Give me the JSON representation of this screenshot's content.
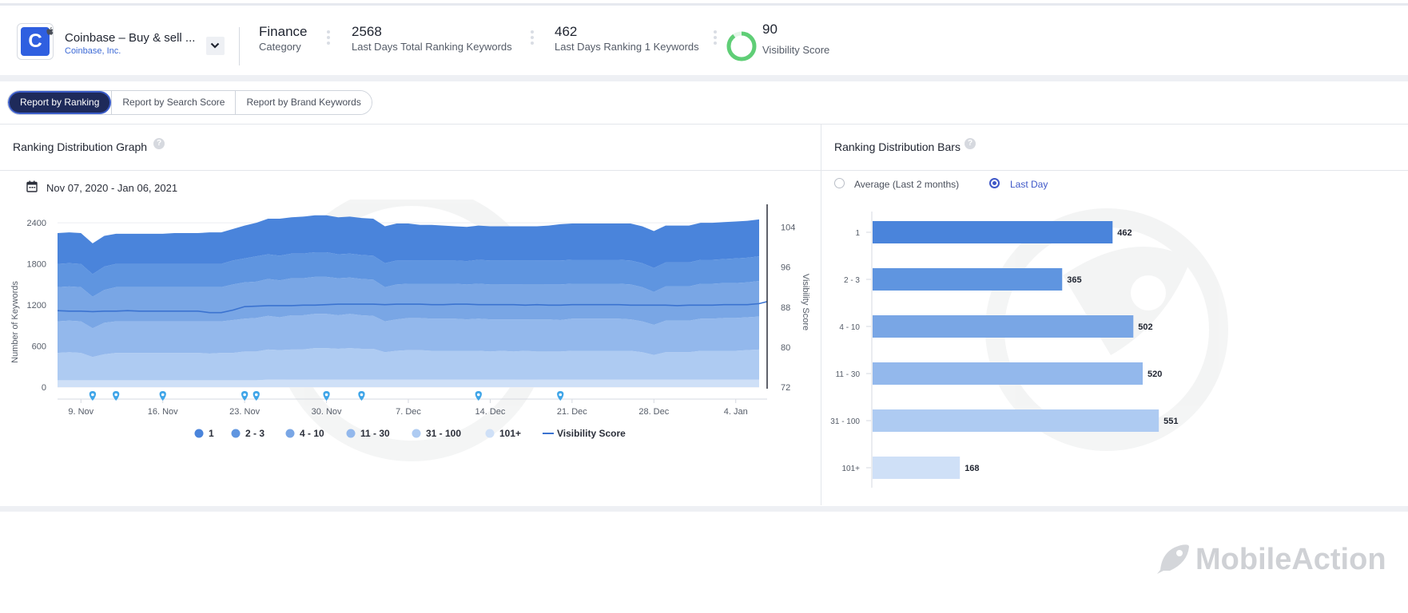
{
  "app": {
    "name": "Coinbase – Buy & sell ...",
    "developer": "Coinbase, Inc.",
    "icon_letter": "C"
  },
  "stats": [
    {
      "value": "Finance",
      "label": "Category"
    },
    {
      "value": "2568",
      "label": "Last Days Total Ranking Keywords"
    },
    {
      "value": "462",
      "label": "Last Days Ranking 1 Keywords"
    },
    {
      "value": "90",
      "label": "Visibility Score"
    }
  ],
  "visibility_ring_fraction": 0.9,
  "tabs": [
    {
      "label": "Report by Ranking",
      "active": true
    },
    {
      "label": "Report by Search Score",
      "active": false
    },
    {
      "label": "Report by Brand Keywords",
      "active": false
    }
  ],
  "left_panel": {
    "title": "Ranking Distribution Graph",
    "date_range": "Nov 07, 2020 - Jan 06, 2021"
  },
  "right_panel": {
    "title": "Ranking Distribution Bars",
    "radio_options": [
      {
        "label": "Average (Last 2 months)",
        "selected": false
      },
      {
        "label": "Last Day",
        "selected": true
      }
    ]
  },
  "colors": {
    "accent": "#3f58c8",
    "tab_active_bg": "#1e2a5a",
    "rank_1": "#4a84db",
    "rank_2_3": "#5f95e0",
    "rank_4_10": "#79a6e5",
    "rank_11_30": "#93b8ec",
    "rank_31_100": "#aecbf2",
    "rank_101_plus": "#cfe0f7",
    "visibility_line": "#3b73d0",
    "ring": "#5fce76"
  },
  "chart_data": [
    {
      "type": "area",
      "stacked": true,
      "ylabel": "Number of Keywords",
      "y2label": "Visibility Score",
      "ylim": [
        0,
        2600
      ],
      "yticks": [
        0,
        600,
        1200,
        1800,
        2400
      ],
      "y2lim": [
        72,
        107.6
      ],
      "y2ticks": [
        72,
        80,
        88,
        96,
        104
      ],
      "x_tick_labels": [
        "9. Nov",
        "16. Nov",
        "23. Nov",
        "30. Nov",
        "7. Dec",
        "14. Dec",
        "21. Dec",
        "28. Dec",
        "4. Jan"
      ],
      "x_tick_day_index": [
        2,
        9,
        16,
        23,
        30,
        37,
        44,
        51,
        58
      ],
      "event_marker_day_index": [
        3,
        5,
        9,
        16,
        17,
        23,
        26,
        36,
        43
      ],
      "day_count": 61,
      "series": [
        {
          "name": "101+",
          "values": [
            100,
            100,
            100,
            100,
            100,
            100,
            100,
            100,
            100,
            100,
            100,
            100,
            100,
            100,
            100,
            100,
            100,
            100,
            110,
            110,
            110,
            110,
            110,
            110,
            110,
            110,
            110,
            110,
            110,
            110,
            110,
            110,
            110,
            110,
            110,
            110,
            110,
            110,
            110,
            110,
            110,
            110,
            110,
            110,
            110,
            110,
            110,
            110,
            110,
            110,
            110,
            110,
            110,
            110,
            110,
            110,
            110,
            110,
            110,
            110,
            110
          ]
        },
        {
          "name": "31 - 100",
          "values": [
            400,
            410,
            400,
            340,
            380,
            400,
            400,
            400,
            400,
            400,
            400,
            400,
            400,
            390,
            400,
            400,
            420,
            420,
            440,
            430,
            440,
            440,
            460,
            460,
            450,
            460,
            450,
            450,
            400,
            420,
            430,
            430,
            420,
            420,
            420,
            420,
            420,
            410,
            420,
            410,
            420,
            410,
            410,
            410,
            420,
            420,
            420,
            420,
            420,
            420,
            400,
            360,
            400,
            400,
            400,
            420,
            420,
            420,
            420,
            430,
            440
          ]
        },
        {
          "name": "11 - 30",
          "values": [
            460,
            460,
            460,
            420,
            460,
            460,
            460,
            460,
            460,
            460,
            460,
            460,
            460,
            470,
            460,
            480,
            480,
            490,
            490,
            480,
            500,
            500,
            500,
            500,
            490,
            500,
            490,
            480,
            450,
            460,
            470,
            470,
            470,
            470,
            470,
            460,
            470,
            470,
            460,
            470,
            460,
            470,
            470,
            460,
            470,
            470,
            470,
            470,
            470,
            460,
            450,
            440,
            460,
            460,
            460,
            470,
            470,
            480,
            480,
            480,
            480
          ]
        },
        {
          "name": "4 - 10",
          "values": [
            500,
            500,
            500,
            460,
            480,
            500,
            500,
            500,
            500,
            500,
            500,
            500,
            500,
            500,
            500,
            520,
            530,
            530,
            540,
            540,
            540,
            540,
            540,
            540,
            540,
            530,
            530,
            530,
            500,
            510,
            500,
            500,
            510,
            510,
            510,
            510,
            510,
            510,
            510,
            510,
            510,
            510,
            510,
            520,
            510,
            510,
            510,
            510,
            510,
            510,
            500,
            480,
            500,
            500,
            500,
            510,
            510,
            510,
            510,
            510,
            520
          ]
        },
        {
          "name": "2 - 3",
          "values": [
            340,
            340,
            340,
            330,
            340,
            340,
            340,
            340,
            340,
            340,
            340,
            340,
            340,
            340,
            340,
            350,
            350,
            370,
            360,
            360,
            360,
            360,
            360,
            360,
            350,
            350,
            350,
            350,
            350,
            350,
            340,
            340,
            340,
            340,
            340,
            340,
            350,
            350,
            350,
            350,
            350,
            350,
            350,
            350,
            350,
            350,
            350,
            350,
            350,
            350,
            350,
            350,
            350,
            350,
            350,
            350,
            350,
            350,
            360,
            360,
            360
          ]
        },
        {
          "name": "1",
          "values": [
            450,
            450,
            450,
            450,
            450,
            440,
            440,
            440,
            440,
            440,
            450,
            450,
            450,
            460,
            460,
            460,
            480,
            490,
            520,
            540,
            530,
            540,
            540,
            540,
            540,
            540,
            540,
            540,
            540,
            540,
            540,
            520,
            520,
            510,
            500,
            500,
            500,
            500,
            500,
            500,
            500,
            500,
            510,
            530,
            530,
            530,
            530,
            530,
            530,
            540,
            540,
            540,
            540,
            540,
            540,
            540,
            540,
            540,
            540,
            540,
            540
          ]
        }
      ],
      "visibility_score": {
        "name": "Visibility Score",
        "values": [
          87.3,
          87.2,
          87.2,
          87.1,
          87.2,
          87.2,
          87.3,
          87.2,
          87.2,
          87.2,
          87.2,
          87.2,
          87.2,
          86.9,
          86.9,
          87.4,
          88.1,
          88.2,
          88.3,
          88.3,
          88.3,
          88.4,
          88.4,
          88.5,
          88.6,
          88.6,
          88.6,
          88.6,
          88.5,
          88.6,
          88.6,
          88.6,
          88.5,
          88.5,
          88.6,
          88.6,
          88.5,
          88.5,
          88.5,
          88.5,
          88.4,
          88.5,
          88.4,
          88.4,
          88.5,
          88.5,
          88.5,
          88.5,
          88.5,
          88.4,
          88.4,
          88.4,
          88.4,
          88.3,
          88.4,
          88.4,
          88.4,
          88.5,
          88.5,
          88.5,
          88.7
        ]
      },
      "legend": [
        "1",
        "2 - 3",
        "4 - 10",
        "11 - 30",
        "31 - 100",
        "101+",
        "Visibility Score"
      ]
    },
    {
      "type": "bar",
      "orientation": "horizontal",
      "categories": [
        "1",
        "2 - 3",
        "4 - 10",
        "11 - 30",
        "31 - 100",
        "101+"
      ],
      "values": [
        462,
        365,
        502,
        520,
        551,
        168
      ],
      "xlim": [
        0,
        800
      ]
    }
  ],
  "brand": "MobileAction"
}
